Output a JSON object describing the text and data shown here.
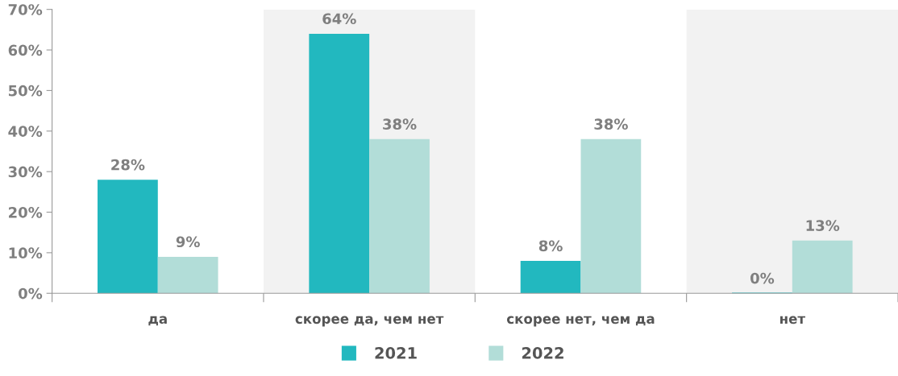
{
  "chart_data": {
    "type": "bar",
    "categories": [
      "да",
      "скорее да, чем нет",
      "скорее нет, чем да",
      "нет"
    ],
    "series": [
      {
        "name": "2021",
        "color": "#22b8bf",
        "values": [
          28,
          64,
          8,
          0
        ],
        "value_labels": [
          "28%",
          "64%",
          "8%",
          "0%"
        ]
      },
      {
        "name": "2022",
        "color": "#b2ddd8",
        "values": [
          9,
          38,
          38,
          13
        ],
        "value_labels": [
          "9%",
          "38%",
          "38%",
          "13%"
        ]
      }
    ],
    "ylim": [
      0,
      70
    ],
    "yticks": [
      {
        "value": 0,
        "label": "0%"
      },
      {
        "value": 10,
        "label": "10%"
      },
      {
        "value": 20,
        "label": "20%"
      },
      {
        "value": 30,
        "label": "30%"
      },
      {
        "value": 40,
        "label": "40%"
      },
      {
        "value": 50,
        "label": "50%"
      },
      {
        "value": 60,
        "label": "60%"
      },
      {
        "value": 70,
        "label": "70%"
      }
    ],
    "bands": [
      {
        "axis": "x",
        "from": "скорее да, чем нет",
        "to": "скорее да, чем нет",
        "color": "#f2f2f2"
      },
      {
        "axis": "x",
        "from": "нет",
        "to": "нет",
        "color": "#f2f2f2"
      }
    ],
    "grid": false,
    "legend": "bottom"
  }
}
